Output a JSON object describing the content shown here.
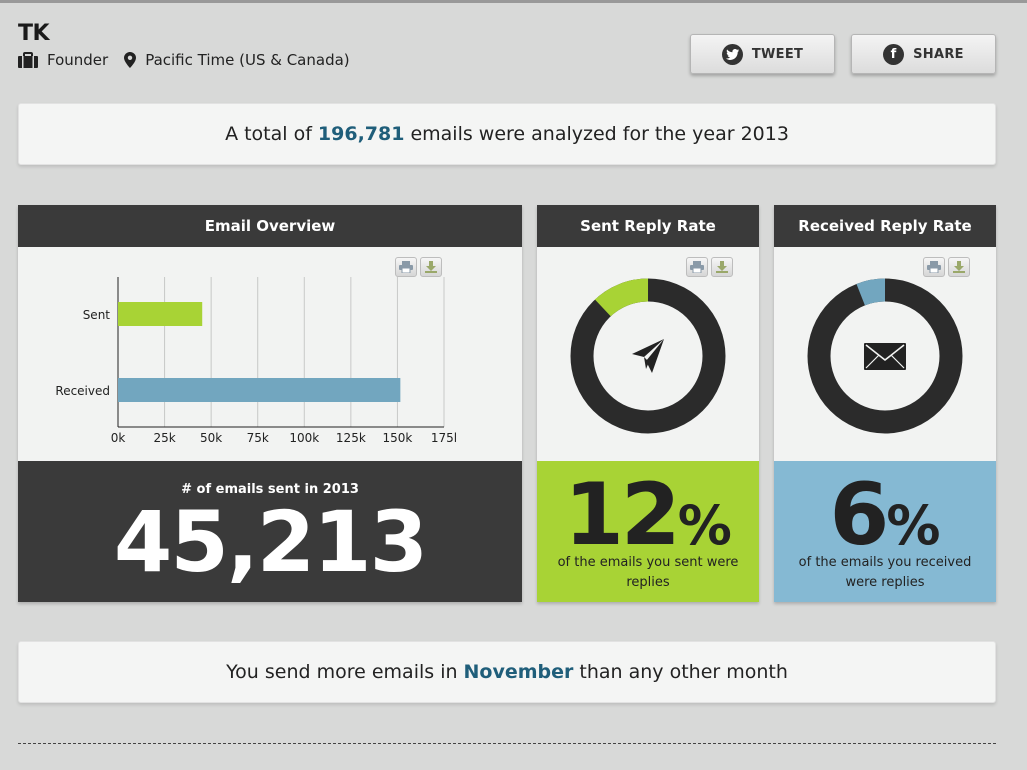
{
  "user": {
    "name": "TK",
    "role": "Founder",
    "timezone": "Pacific Time (US & Canada)"
  },
  "buttons": {
    "tweet": "TWEET",
    "share": "SHARE"
  },
  "summary": {
    "prefix": "A total of",
    "count": "196,781",
    "suffix": "emails were analyzed for the year 2013"
  },
  "overview": {
    "title": "Email Overview",
    "stat_caption": "# of emails sent in 2013",
    "stat_value": "45,213"
  },
  "sent_rate": {
    "title": "Sent Reply Rate",
    "value": "12",
    "unit": "%",
    "fraction": 0.12,
    "caption": "of the emails you sent were replies"
  },
  "received_rate": {
    "title": "Received Reply Rate",
    "value": "6",
    "unit": "%",
    "fraction": 0.06,
    "caption": "of the emails you received were replies"
  },
  "month_banner": {
    "prefix": "You send more emails in",
    "month": "November",
    "suffix": "than any other month"
  },
  "colors": {
    "accent_text": "#1f5e7a",
    "sent_green": "#a8d335",
    "received_blue": "#72a6bf",
    "dark": "#2b2b2b"
  },
  "chart_data": {
    "type": "bar",
    "orientation": "horizontal",
    "categories": [
      "Sent",
      "Received"
    ],
    "values": [
      45213,
      151568
    ],
    "colors": [
      "#a8d335",
      "#72a6bf"
    ],
    "xlim": [
      0,
      175000
    ],
    "xticks": [
      0,
      25000,
      50000,
      75000,
      100000,
      125000,
      150000,
      175000
    ],
    "xtick_labels": [
      "0k",
      "25k",
      "50k",
      "75k",
      "100k",
      "125k",
      "150k",
      "175l"
    ],
    "grid": true,
    "title": "",
    "xlabel": "",
    "ylabel": ""
  }
}
